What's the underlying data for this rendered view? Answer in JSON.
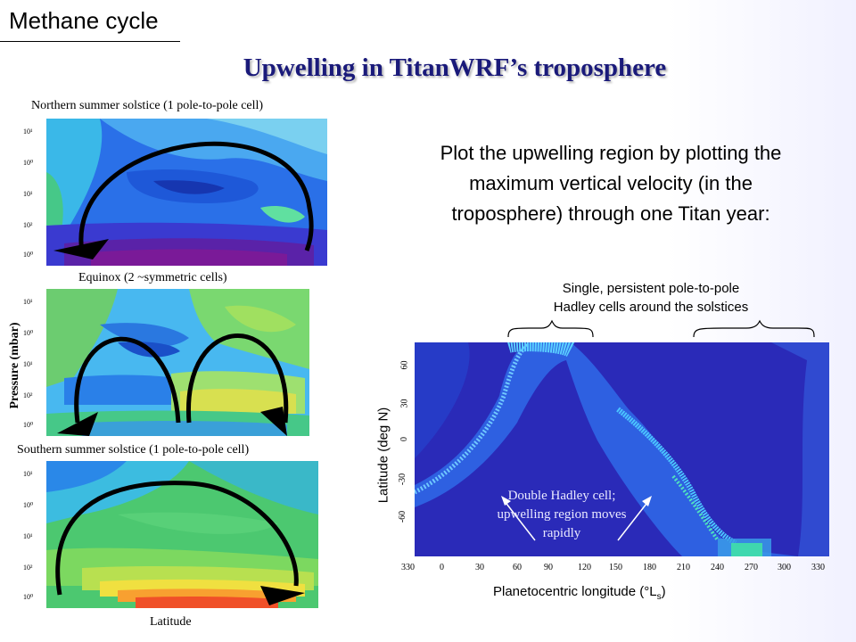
{
  "header": {
    "section": "Methane cycle",
    "title": "Upwelling in TitanWRF’s troposphere"
  },
  "left_panels": {
    "captions": [
      "Northern summer solstice (1 pole-to-pole cell)",
      "Equinox (2 ~symmetric cells)",
      "Southern summer solstice (1 pole-to-pole cell)"
    ],
    "y_axis_label": "Pressure (mbar)",
    "x_axis_label": "Latitude",
    "y_tick_labels": [
      "10¹",
      "10⁰",
      "10¹",
      "10²",
      "10⁰",
      "10⁰"
    ]
  },
  "description": {
    "line1": "Plot the upwelling region by plotting the",
    "line2": "maximum vertical velocity (in the",
    "line3": "troposphere) through one Titan year:"
  },
  "hovmoller": {
    "annotation_top_line1": "Single, persistent pole-to-pole",
    "annotation_top_line2": "Hadley cells around the solstices",
    "annotation_inner_line1": "Double Hadley cell;",
    "annotation_inner_line2": "upwelling region moves",
    "annotation_inner_line3": "rapidly",
    "y_label": "Latitude (deg N)",
    "x_label_main": "Planetocentric longitude (°L",
    "x_label_sub": "s",
    "x_label_close": ")",
    "x_ticks": [
      "330",
      "0",
      "30",
      "60",
      "90",
      "120",
      "150",
      "180",
      "210",
      "240",
      "270",
      "300",
      "330"
    ],
    "y_ticks": [
      "-60",
      "-30",
      "0",
      "30",
      "60"
    ],
    "colors": {
      "background": "#2a2ab8",
      "band": "#2f9bff",
      "highlight": "#40e0a8"
    }
  }
}
